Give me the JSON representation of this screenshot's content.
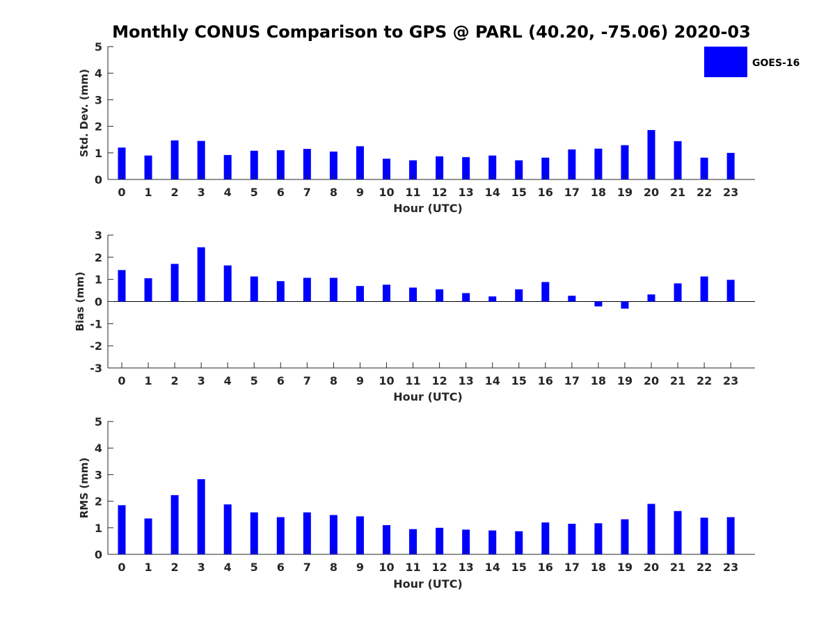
{
  "title": "Monthly CONUS Comparison to GPS @ PARL (40.20, -75.06) 2020-03",
  "legend": {
    "label": "GOES-16",
    "color": "#0000ff"
  },
  "colors": {
    "bar": "#0000ff",
    "axis": "#262626",
    "text": "#262626"
  },
  "chart_data": [
    {
      "type": "bar",
      "name": "std-dev",
      "title": "Monthly CONUS Comparison to GPS @ PARL (40.20, -75.06) 2020-03",
      "xlabel": "Hour (UTC)",
      "ylabel": "Std. Dev. (mm)",
      "ylim": [
        0,
        5
      ],
      "yticks": [
        0,
        1,
        2,
        3,
        4,
        5
      ],
      "categories": [
        "0",
        "1",
        "2",
        "3",
        "4",
        "5",
        "6",
        "7",
        "8",
        "9",
        "10",
        "11",
        "12",
        "13",
        "14",
        "15",
        "16",
        "17",
        "18",
        "19",
        "20",
        "21",
        "22",
        "23"
      ],
      "series": [
        {
          "name": "GOES-16",
          "values": [
            1.2,
            0.9,
            1.47,
            1.45,
            0.92,
            1.08,
            1.1,
            1.15,
            1.05,
            1.25,
            0.78,
            0.72,
            0.87,
            0.84,
            0.9,
            0.72,
            0.82,
            1.13,
            1.16,
            1.29,
            1.86,
            1.44,
            0.82,
            1.0
          ]
        }
      ],
      "grid": false
    },
    {
      "type": "bar",
      "name": "bias",
      "xlabel": "Hour (UTC)",
      "ylabel": "Bias (mm)",
      "ylim": [
        -3,
        3
      ],
      "yticks": [
        -3,
        -2,
        -1,
        0,
        1,
        2,
        3
      ],
      "categories": [
        "0",
        "1",
        "2",
        "3",
        "4",
        "5",
        "6",
        "7",
        "8",
        "9",
        "10",
        "11",
        "12",
        "13",
        "14",
        "15",
        "16",
        "17",
        "18",
        "19",
        "20",
        "21",
        "22",
        "23"
      ],
      "series": [
        {
          "name": "GOES-16",
          "values": [
            1.42,
            1.05,
            1.7,
            2.45,
            1.63,
            1.13,
            0.92,
            1.07,
            1.07,
            0.7,
            0.76,
            0.63,
            0.55,
            0.38,
            0.23,
            0.55,
            0.88,
            0.26,
            -0.22,
            -0.32,
            0.32,
            0.82,
            1.13,
            0.98
          ]
        }
      ],
      "grid": false
    },
    {
      "type": "bar",
      "name": "rms",
      "xlabel": "Hour (UTC)",
      "ylabel": "RMS (mm)",
      "ylim": [
        0,
        5
      ],
      "yticks": [
        0,
        1,
        2,
        3,
        4,
        5
      ],
      "categories": [
        "0",
        "1",
        "2",
        "3",
        "4",
        "5",
        "6",
        "7",
        "8",
        "9",
        "10",
        "11",
        "12",
        "13",
        "14",
        "15",
        "16",
        "17",
        "18",
        "19",
        "20",
        "21",
        "22",
        "23"
      ],
      "series": [
        {
          "name": "GOES-16",
          "values": [
            1.85,
            1.35,
            2.23,
            2.83,
            1.88,
            1.58,
            1.4,
            1.58,
            1.48,
            1.43,
            1.1,
            0.95,
            1.0,
            0.93,
            0.9,
            0.87,
            1.2,
            1.15,
            1.17,
            1.32,
            1.9,
            1.63,
            1.38,
            1.4
          ]
        }
      ],
      "grid": false
    }
  ]
}
